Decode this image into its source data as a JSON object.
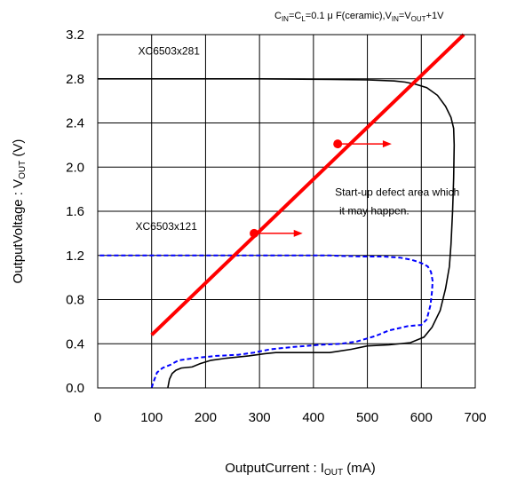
{
  "chart_data": {
    "type": "line",
    "title": "",
    "condition_parts": {
      "cin_main": "C",
      "cin_sub": "IN",
      "eq1": "=C",
      "cl_sub": "L",
      "mid": "=0.1 μ F(ceramic),V",
      "vin_sub": "IN",
      "eq2": "=V",
      "vout_sub": "OUT",
      "tail": "+1V"
    },
    "xlabel_parts": {
      "main": "OutputCurrent : I",
      "sub": "OUT",
      "unit": " (mA)"
    },
    "ylabel": "OutputVoltage : Vₒᵤₜ (V)",
    "ylabel_parts": {
      "main": "OutputVoltage : V",
      "sub": "OUT",
      "unit": " (V)"
    },
    "xlim": [
      0,
      700
    ],
    "ylim": [
      0,
      3.2
    ],
    "x_ticks": [
      0,
      100,
      200,
      300,
      400,
      500,
      600,
      700
    ],
    "y_ticks": [
      0.0,
      0.4,
      0.8,
      1.2,
      1.6,
      2.0,
      2.4,
      2.8,
      3.2
    ],
    "x_tick_labels": [
      "0",
      "100",
      "200",
      "300",
      "400",
      "500",
      "600",
      "700"
    ],
    "y_tick_labels": [
      "0.0",
      "0.4",
      "0.8",
      "1.2",
      "1.6",
      "2.0",
      "2.4",
      "2.8",
      "3.2"
    ],
    "grid": true,
    "series": [
      {
        "name": "XC6503x281",
        "color": "#000000",
        "style": "solid",
        "points": [
          [
            130,
            0
          ],
          [
            133,
            0.08
          ],
          [
            138,
            0.13
          ],
          [
            145,
            0.16
          ],
          [
            155,
            0.18
          ],
          [
            175,
            0.19
          ],
          [
            190,
            0.22
          ],
          [
            210,
            0.25
          ],
          [
            240,
            0.27
          ],
          [
            280,
            0.29
          ],
          [
            310,
            0.31
          ],
          [
            330,
            0.32
          ],
          [
            380,
            0.32
          ],
          [
            430,
            0.32
          ],
          [
            470,
            0.35
          ],
          [
            500,
            0.38
          ],
          [
            540,
            0.39
          ],
          [
            580,
            0.41
          ],
          [
            605,
            0.46
          ],
          [
            620,
            0.55
          ],
          [
            635,
            0.7
          ],
          [
            645,
            0.9
          ],
          [
            652,
            1.1
          ],
          [
            655,
            1.3
          ],
          [
            658,
            1.6
          ],
          [
            660,
            1.9
          ],
          [
            661,
            2.2
          ],
          [
            660,
            2.35
          ],
          [
            655,
            2.45
          ],
          [
            645,
            2.55
          ],
          [
            630,
            2.65
          ],
          [
            610,
            2.72
          ],
          [
            590,
            2.75
          ],
          [
            570,
            2.77
          ],
          [
            550,
            2.78
          ],
          [
            500,
            2.79
          ],
          [
            430,
            2.795
          ],
          [
            300,
            2.8
          ],
          [
            0,
            2.8
          ]
        ]
      },
      {
        "name": "XC6503x121",
        "color": "#0000ff",
        "style": "dashed",
        "points": [
          [
            100,
            0
          ],
          [
            104,
            0.06
          ],
          [
            110,
            0.14
          ],
          [
            120,
            0.18
          ],
          [
            135,
            0.21
          ],
          [
            150,
            0.25
          ],
          [
            180,
            0.27
          ],
          [
            220,
            0.29
          ],
          [
            260,
            0.3
          ],
          [
            290,
            0.32
          ],
          [
            320,
            0.35
          ],
          [
            360,
            0.37
          ],
          [
            410,
            0.39
          ],
          [
            450,
            0.4
          ],
          [
            480,
            0.42
          ],
          [
            515,
            0.47
          ],
          [
            540,
            0.52
          ],
          [
            575,
            0.56
          ],
          [
            600,
            0.57
          ],
          [
            610,
            0.62
          ],
          [
            617,
            0.75
          ],
          [
            620,
            0.88
          ],
          [
            621,
            0.97
          ],
          [
            618,
            1.05
          ],
          [
            612,
            1.1
          ],
          [
            605,
            1.12
          ],
          [
            595,
            1.14
          ],
          [
            582,
            1.16
          ],
          [
            560,
            1.18
          ],
          [
            530,
            1.19
          ],
          [
            495,
            1.19
          ],
          [
            455,
            1.195
          ],
          [
            430,
            1.2
          ],
          [
            0,
            1.2
          ]
        ]
      }
    ],
    "boundary_line": {
      "color": "#ff0000",
      "points": [
        [
          100,
          0.48
        ],
        [
          700,
          3.3
        ]
      ]
    },
    "arrows": [
      {
        "x": 290,
        "y": 1.4,
        "x_end": 380
      },
      {
        "x": 445,
        "y": 2.21,
        "x_end": 545
      }
    ],
    "annotations": [
      {
        "text": "XC6503x281",
        "x": 75,
        "y": 3.02
      },
      {
        "text": "XC6503x121",
        "x": 70,
        "y": 1.43
      },
      {
        "text": "Start-up defect area which",
        "x": 440,
        "y": 1.74
      },
      {
        "text": "it may happen.",
        "x": 448,
        "y": 1.57
      }
    ]
  }
}
